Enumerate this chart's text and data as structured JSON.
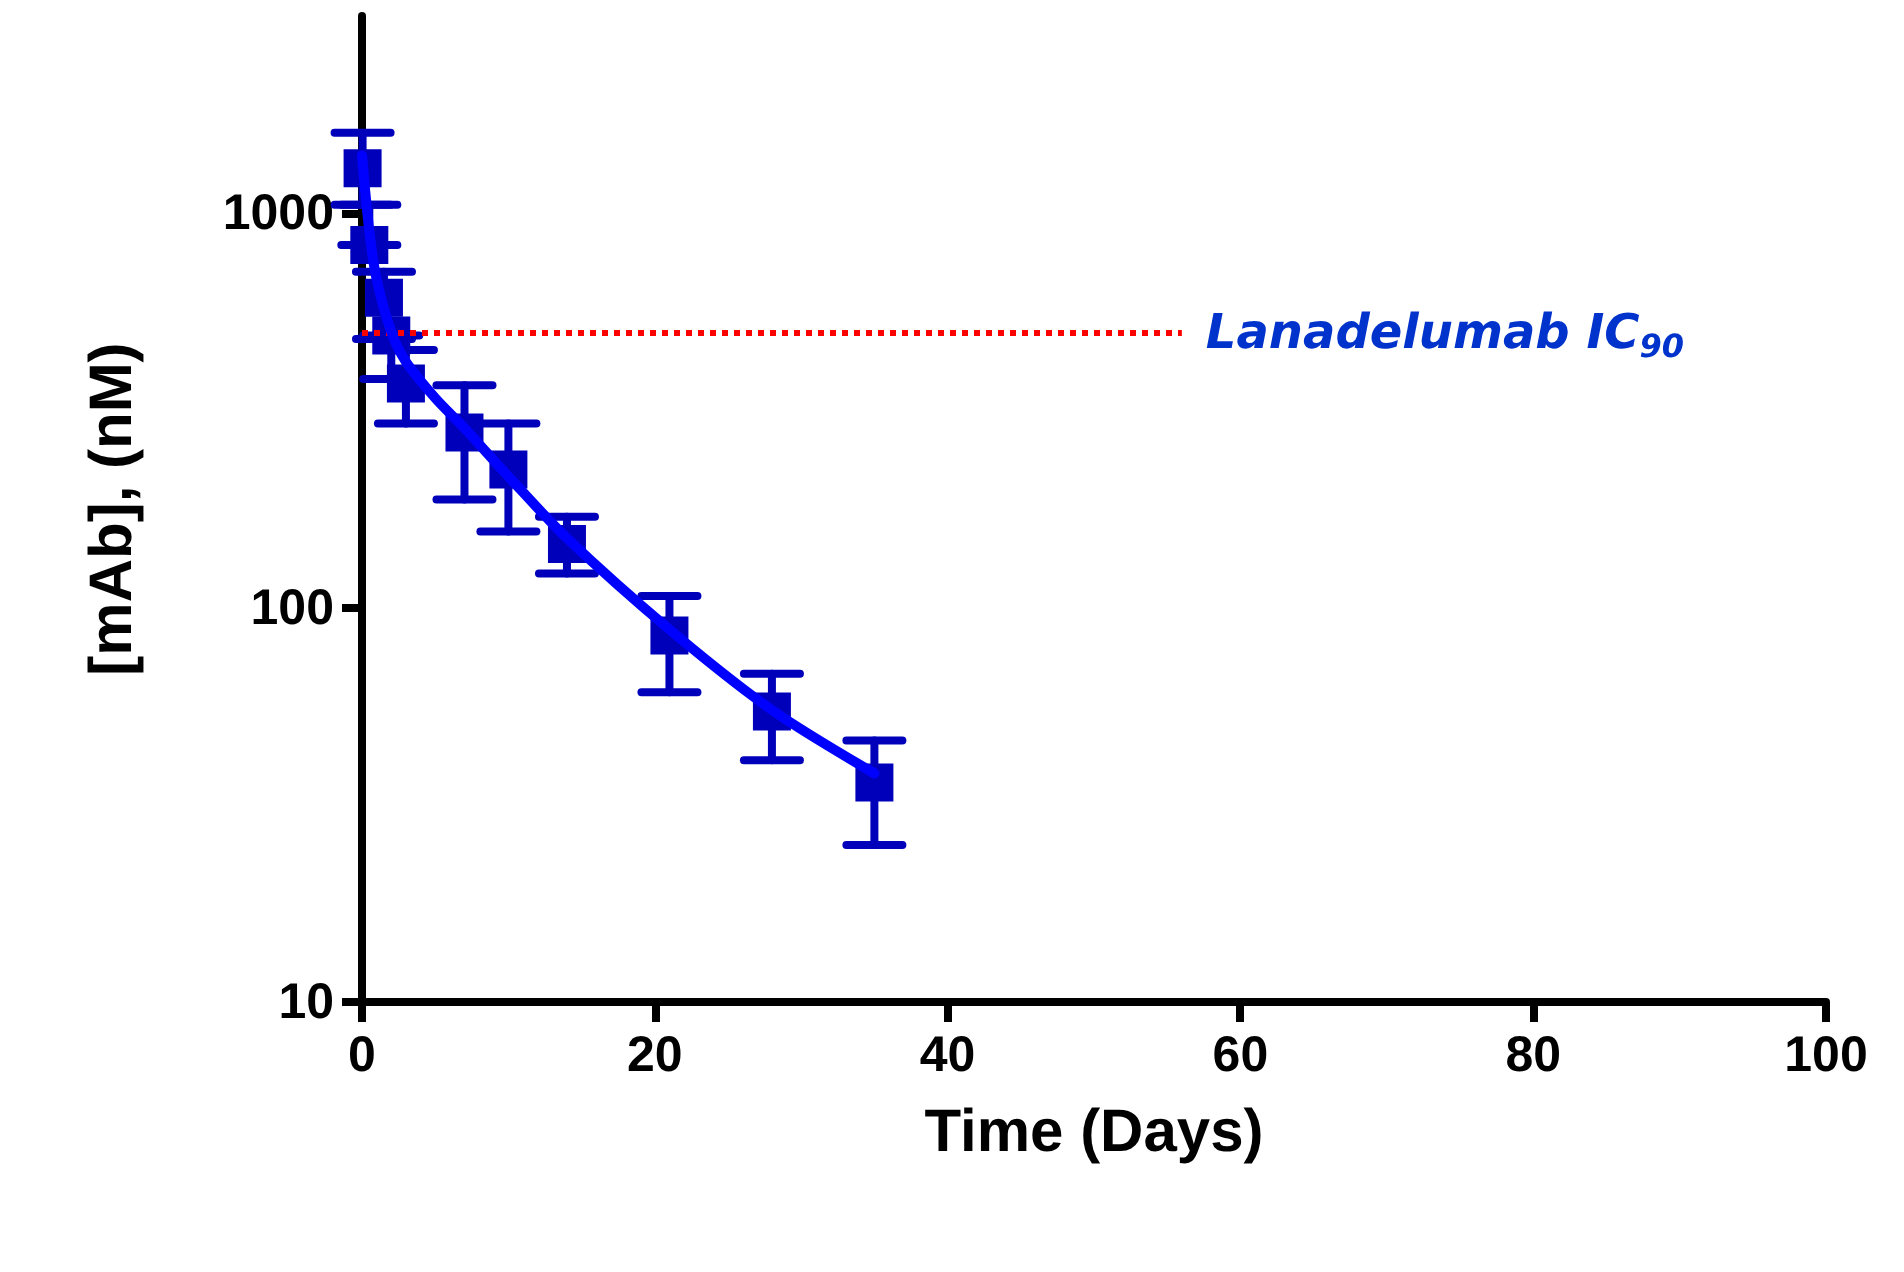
{
  "chart_data": {
    "type": "scatter",
    "xlabel": "Time (Days)",
    "ylabel": "[mAb], (nM)",
    "log": "y",
    "xlim": [
      0,
      100
    ],
    "xticks": [
      0,
      20,
      40,
      60,
      80,
      100
    ],
    "ylim": [
      10,
      3162
    ],
    "yticks": [
      10,
      100,
      1000
    ],
    "grid": false,
    "series": [
      {
        "color": "#0000bb",
        "marker": "square",
        "x": [
          0.04,
          0.5,
          1.5,
          2,
          3,
          7,
          10,
          14,
          21,
          28,
          35
        ],
        "values": [
          1300,
          830,
          610,
          490,
          370,
          278,
          224,
          145,
          85,
          54.5,
          36
        ],
        "errors": [
          [
            1050,
            1600
          ],
          [
            830,
            1050
          ],
          [
            480,
            710
          ],
          [
            380,
            490
          ],
          [
            293,
            450
          ],
          [
            188,
            366
          ],
          [
            156,
            293
          ],
          [
            122,
            170
          ],
          [
            61,
            107
          ],
          [
            41,
            68
          ],
          [
            25,
            46
          ]
        ]
      },
      {
        "type": "line",
        "color": "#0000ff",
        "marker": "none",
        "line_style": "solid",
        "x": [
          0,
          0.5,
          1,
          2,
          3,
          5,
          7,
          10,
          14,
          21,
          28,
          35
        ],
        "values": [
          1400,
          900,
          680,
          500,
          420,
          340,
          285,
          215,
          150,
          88,
          55,
          38
        ]
      }
    ],
    "ref_lines": [
      {
        "axis": "y",
        "value": 500,
        "label": "Lanadelumab IC$_{90}$",
        "color": "#ff0000",
        "line_style": "dotted"
      }
    ]
  }
}
